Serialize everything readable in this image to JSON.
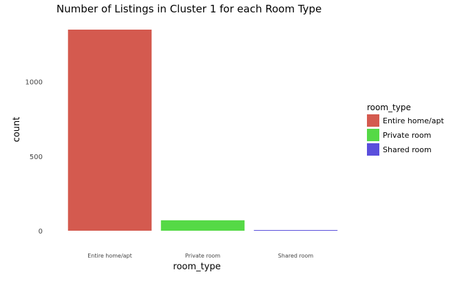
{
  "chart_data": {
    "type": "bar",
    "title": "Number of Listings in Cluster 1 for each Room Type",
    "xlabel": "room_type",
    "ylabel": "count",
    "categories": [
      "Entire home/apt",
      "Private room",
      "Shared room"
    ],
    "values": [
      1350,
      70,
      4
    ],
    "ylim": [
      0,
      1350
    ],
    "yticks": [
      "0",
      "500",
      "1000"
    ],
    "ytick_values": [
      0,
      500,
      1000
    ],
    "grid": false,
    "legend": {
      "title": "room_type",
      "position": "right",
      "entries": [
        "Entire home/apt",
        "Private room",
        "Shared room"
      ]
    },
    "colors": [
      "#d45a4f",
      "#55d946",
      "#5a4fdc"
    ]
  }
}
